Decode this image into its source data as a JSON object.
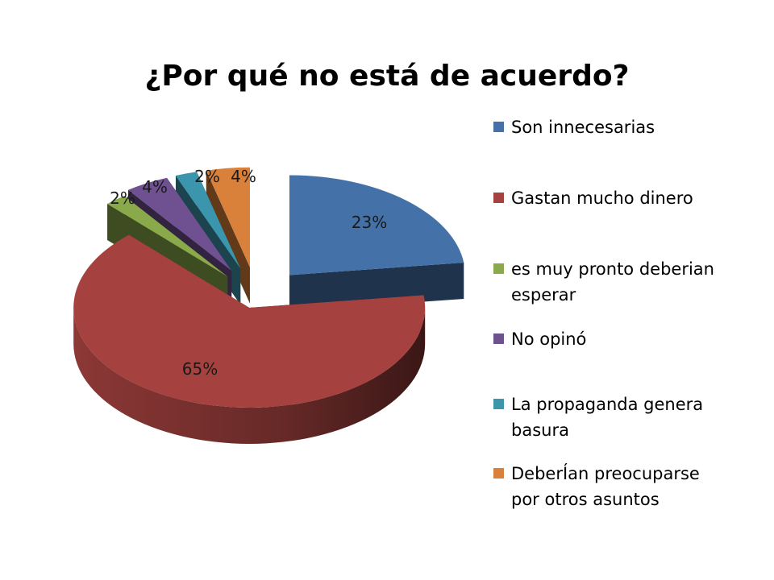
{
  "chart_data": {
    "type": "pie",
    "style": "3d-exploded",
    "title": "¿Por qué no está de acuerdo?",
    "categories": [
      "Son innecesarias",
      "Gastan mucho dinero",
      "es muy pronto deberian esperar",
      "No opinó",
      "La propaganda genera basura",
      "DeberÍan preocuparse por otros asuntos"
    ],
    "legend_lines": [
      [
        "Son innecesarias"
      ],
      [
        "Gastan mucho dinero"
      ],
      [
        "es muy pronto deberian",
        "esperar"
      ],
      [
        "No opinó"
      ],
      [
        "La propaganda genera",
        "basura"
      ],
      [
        "DeberÍan preocuparse",
        "por otros asuntos"
      ]
    ],
    "values": [
      23,
      65,
      2,
      4,
      2,
      4
    ],
    "data_labels": [
      "23%",
      "65%",
      "2%",
      "4%",
      "2%",
      "4%"
    ],
    "colors": [
      "#4472a8",
      "#a5423f",
      "#89a94a",
      "#6f5091",
      "#3b96ad",
      "#d9813a"
    ],
    "legend_position": "right"
  }
}
